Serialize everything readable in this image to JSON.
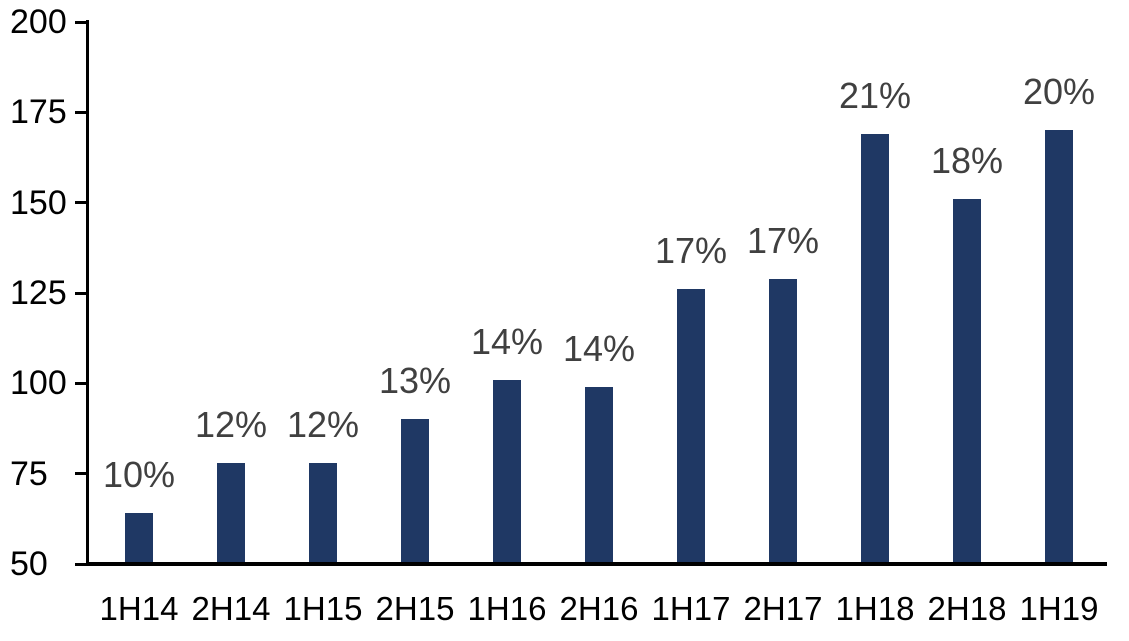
{
  "chart_data": {
    "type": "bar",
    "title": "",
    "xlabel": "",
    "ylabel": "",
    "categories": [
      "1H14",
      "2H14",
      "1H15",
      "2H15",
      "1H16",
      "2H16",
      "1H17",
      "2H17",
      "1H18",
      "2H18",
      "1H19"
    ],
    "values": [
      64,
      78,
      78,
      90,
      101,
      99,
      126,
      129,
      169,
      151,
      170
    ],
    "bar_labels": [
      "10%",
      "12%",
      "12%",
      "13%",
      "14%",
      "14%",
      "17%",
      "17%",
      "21%",
      "18%",
      "20%"
    ],
    "ylim": [
      50,
      200
    ],
    "yticks": [
      50,
      75,
      100,
      125,
      150,
      175,
      200
    ],
    "grid": false,
    "legend_position": "none",
    "colors": {
      "bar": "#1F3864",
      "bar_label": "#404040",
      "axis_line": "#000000",
      "axis_text": "#000000",
      "background": "#FFFFFF"
    }
  }
}
